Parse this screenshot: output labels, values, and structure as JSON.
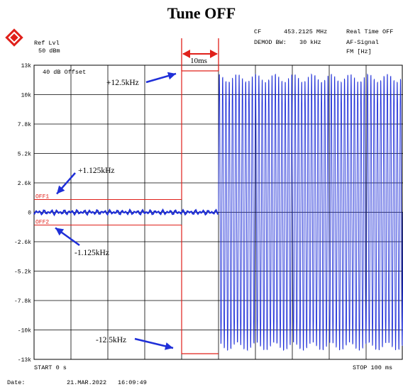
{
  "title": "Tune OFF",
  "header": {
    "ref_lvl_label": "Ref Lvl",
    "ref_lvl_value": "50 dBm",
    "cf_label": "CF",
    "cf_value": "453.2125 MHz",
    "mode": "Real Time OFF",
    "demod_label": "DEMOD BW:",
    "demod_value": "30 kHz",
    "signal": "AF-Signal",
    "unit": "FM [Hz]"
  },
  "footer": {
    "start": "START 0 s",
    "stop": "STOP 100 ms",
    "date_label": "Date:",
    "date": "21.MAR.2022",
    "time": "16:09:49"
  },
  "colors": {
    "trace": "#1f2fd8",
    "limit": "#e0201a",
    "arrow": "#1f2fd8",
    "logo": "#e0201a"
  },
  "chart_data": {
    "type": "line",
    "title": "Tune OFF",
    "x": {
      "start_ms": 0,
      "stop_ms": 100,
      "divisions": 10
    },
    "yticks": [
      "13k",
      "10k",
      "7.8k",
      "5.2k",
      "2.6k",
      "0",
      "-2.6k",
      "-5.2k",
      "-7.8k",
      "-10k",
      "-13k"
    ],
    "ylim": [
      -13000,
      13000
    ],
    "grid": true,
    "offset_label": "40 dB Offset",
    "limit_lines": [
      {
        "name": "OFF1",
        "value": 1125
      },
      {
        "name": "OFF2",
        "value": -1125
      }
    ],
    "mask": {
      "high_hz": 12500,
      "low_hz": -12500,
      "start_ms": 40,
      "end_ms": 50
    },
    "marker_10ms": {
      "label": "10ms",
      "from_ms": 40,
      "to_ms": 50
    },
    "annotations": [
      "+12.5kHz",
      "+1.125kHz",
      "-1.125kHz",
      "-12.5kHz"
    ],
    "series": [
      {
        "segment": "stable",
        "from_ms": 0,
        "to_ms": 50,
        "value_hz": 0
      },
      {
        "segment": "unstable",
        "from_ms": 50,
        "to_ms": 100,
        "amplitude_hz": 12500,
        "cycles": 56
      }
    ]
  }
}
